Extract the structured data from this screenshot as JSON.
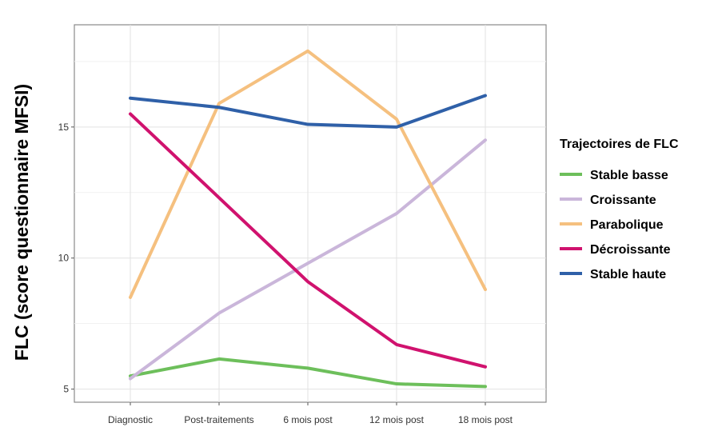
{
  "chart_data": {
    "type": "line",
    "title": "",
    "xlabel": "",
    "ylabel": "FLC (score questionnaire MFSI)",
    "categories": [
      "Diagnostic",
      "Post-traitements",
      "6 mois post",
      "12 mois post",
      "18 mois post"
    ],
    "yticks": [
      5,
      10,
      15
    ],
    "ylim": [
      4.5,
      18.9
    ],
    "grid": true,
    "legend": {
      "title": "Trajectoires de FLC",
      "position": "right"
    },
    "series": [
      {
        "name": "Stable basse",
        "color": "#6dbf5b",
        "values": [
          5.5,
          6.15,
          5.8,
          5.2,
          5.1
        ]
      },
      {
        "name": "Croissante",
        "color": "#cab6da",
        "values": [
          5.4,
          7.9,
          9.8,
          11.7,
          14.5
        ]
      },
      {
        "name": "Parabolique",
        "color": "#f5c07f",
        "values": [
          8.5,
          15.9,
          17.9,
          15.3,
          8.8
        ]
      },
      {
        "name": "Décroissante",
        "color": "#d0126e",
        "values": [
          15.5,
          12.3,
          9.1,
          6.7,
          5.85
        ]
      },
      {
        "name": "Stable haute",
        "color": "#2f60a8",
        "values": [
          16.1,
          15.75,
          15.1,
          15.0,
          16.2
        ]
      }
    ]
  }
}
